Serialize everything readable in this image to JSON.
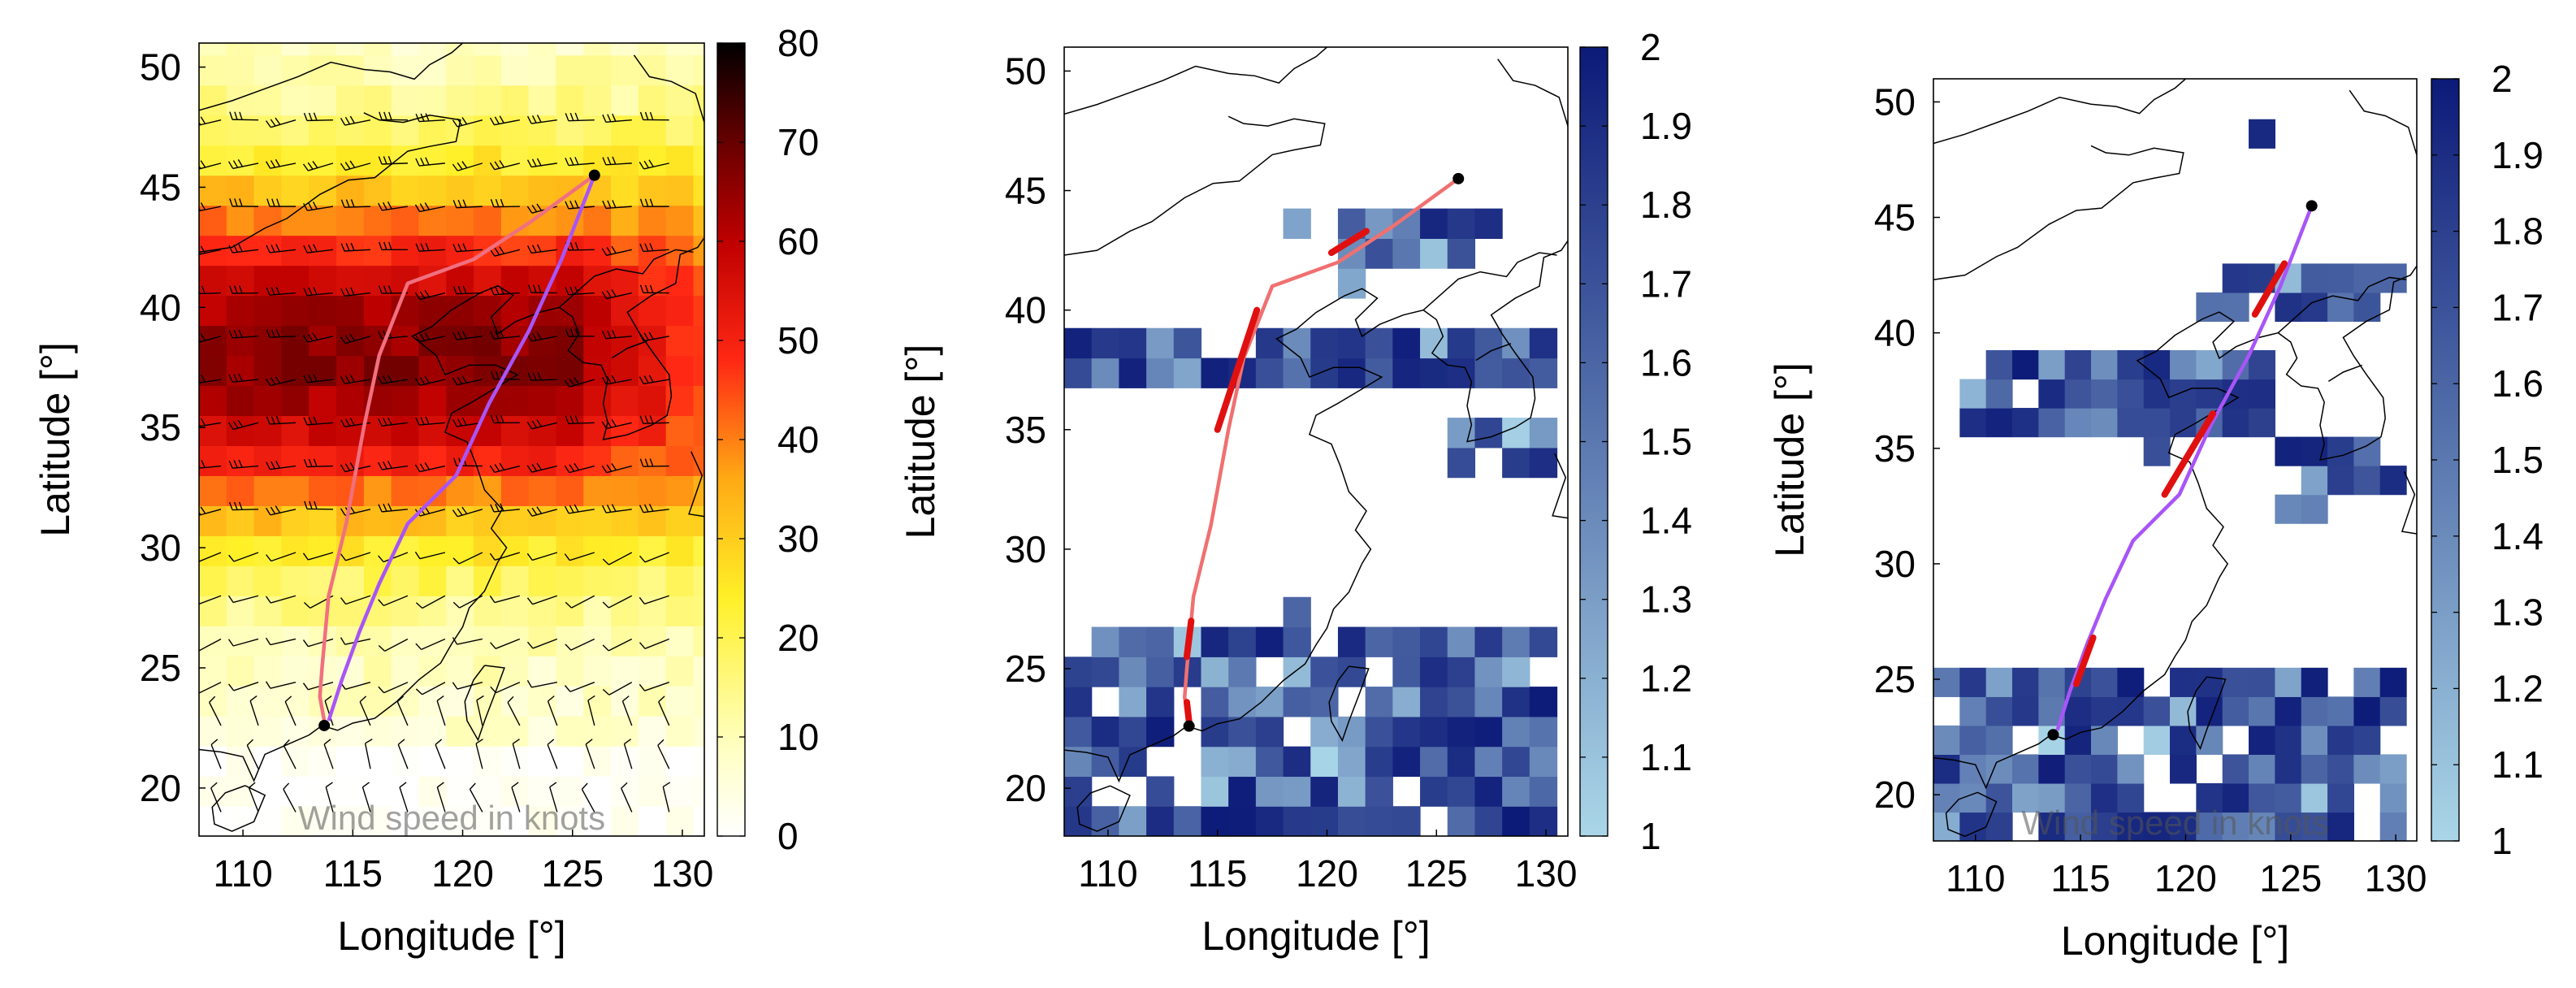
{
  "chart_data": [
    {
      "type": "heatmap",
      "xlabel": "Longitude [°]",
      "ylabel": "Latitude [°]",
      "xlim": [
        108,
        131
      ],
      "ylim": [
        18,
        51
      ],
      "xticks": [
        110,
        115,
        120,
        125,
        130
      ],
      "yticks": [
        20,
        25,
        30,
        35,
        40,
        45,
        50
      ],
      "colorbar": {
        "min": 0,
        "max": 80,
        "ticks": [
          0,
          10,
          20,
          30,
          40,
          50,
          60,
          70,
          80
        ],
        "colormap": "hot"
      },
      "faint_caption": "Wind speed in knots",
      "overlays": [
        "wind-barbs",
        "coastlines"
      ],
      "trajectories": [
        {
          "color": "#f07080",
          "points": [
            [
              126,
              45.5
            ],
            [
              123,
              43.5
            ],
            [
              120.5,
              42
            ],
            [
              117.5,
              41
            ],
            [
              116.2,
              38
            ],
            [
              115.5,
              35
            ],
            [
              114.7,
              31
            ],
            [
              113.9,
              28
            ],
            [
              113.6,
              25
            ],
            [
              113.5,
              23.8
            ],
            [
              113.7,
              22.8
            ]
          ]
        },
        {
          "color": "#a855f7",
          "points": [
            [
              126,
              45.5
            ],
            [
              124.5,
              42
            ],
            [
              123,
              39
            ],
            [
              121.2,
              36
            ],
            [
              119.7,
              33
            ],
            [
              117.5,
              31
            ],
            [
              116.2,
              28.5
            ],
            [
              115.3,
              26.5
            ],
            [
              114.5,
              24.5
            ],
            [
              113.9,
              22.8
            ]
          ]
        }
      ],
      "markers": [
        [
          126,
          45.5
        ],
        [
          113.7,
          22.6
        ]
      ]
    },
    {
      "type": "heatmap",
      "xlabel": "Longitude [°]",
      "ylabel": "Latitude [°]",
      "xlim": [
        108,
        131
      ],
      "ylim": [
        18,
        51
      ],
      "xticks": [
        110,
        115,
        120,
        125,
        130
      ],
      "yticks": [
        20,
        25,
        30,
        35,
        40,
        45,
        50
      ],
      "colorbar": {
        "min": 1,
        "max": 2,
        "ticks": [
          1,
          1.1,
          1.2,
          1.3,
          1.4,
          1.5,
          1.6,
          1.7,
          1.8,
          1.9,
          2
        ],
        "colormap": "blues"
      },
      "overlays": [
        "coastlines"
      ],
      "trajectories": [
        {
          "color": "#f07070",
          "points": [
            [
              126,
              45.5
            ],
            [
              123,
              43.5
            ],
            [
              120.5,
              42
            ],
            [
              117.5,
              41
            ],
            [
              116.2,
              38
            ],
            [
              115.5,
              35
            ],
            [
              114.7,
              31
            ],
            [
              113.9,
              28
            ],
            [
              113.6,
              25
            ],
            [
              113.5,
              23.8
            ],
            [
              113.7,
              22.8
            ]
          ],
          "highlighted_segments": [
            [
              [
                121.8,
                43.3
              ],
              [
                120.2,
                42.4
              ]
            ],
            [
              [
                116.8,
                40
              ],
              [
                115,
                35
              ]
            ],
            [
              [
                113.8,
                27
              ],
              [
                113.6,
                25.5
              ]
            ],
            [
              [
                113.6,
                23.6
              ],
              [
                113.7,
                22.8
              ]
            ]
          ]
        }
      ],
      "markers": [
        [
          126,
          45.5
        ],
        [
          113.7,
          22.6
        ]
      ]
    },
    {
      "type": "heatmap",
      "xlabel": "Longitude [°]",
      "ylabel": "Latitude [°]",
      "xlim": [
        108,
        131
      ],
      "ylim": [
        18,
        51
      ],
      "xticks": [
        110,
        115,
        120,
        125,
        130
      ],
      "yticks": [
        20,
        25,
        30,
        35,
        40,
        45,
        50
      ],
      "colorbar": {
        "min": 1,
        "max": 2,
        "ticks": [
          1,
          1.1,
          1.2,
          1.3,
          1.4,
          1.5,
          1.6,
          1.7,
          1.8,
          1.9,
          2
        ],
        "colormap": "blues"
      },
      "faint_caption": "Wind speed in knots",
      "overlays": [
        "coastlines"
      ],
      "trajectories": [
        {
          "color": "#a855f7",
          "points": [
            [
              126,
              45.5
            ],
            [
              124.5,
              42
            ],
            [
              123,
              39
            ],
            [
              121.2,
              36
            ],
            [
              119.7,
              33
            ],
            [
              117.5,
              31
            ],
            [
              116.2,
              28.5
            ],
            [
              115.3,
              26.5
            ],
            [
              114.5,
              24.5
            ],
            [
              113.9,
              22.8
            ]
          ],
          "highlighted_segments": [
            [
              [
                124.7,
                43
              ],
              [
                123.3,
                40.8
              ]
            ],
            [
              [
                121.3,
                36.5
              ],
              [
                119,
                33
              ]
            ],
            [
              [
                115.6,
                26.8
              ],
              [
                114.8,
                24.8
              ]
            ]
          ]
        }
      ],
      "markers": [
        [
          126,
          45.5
        ],
        [
          113.7,
          22.6
        ]
      ]
    }
  ]
}
